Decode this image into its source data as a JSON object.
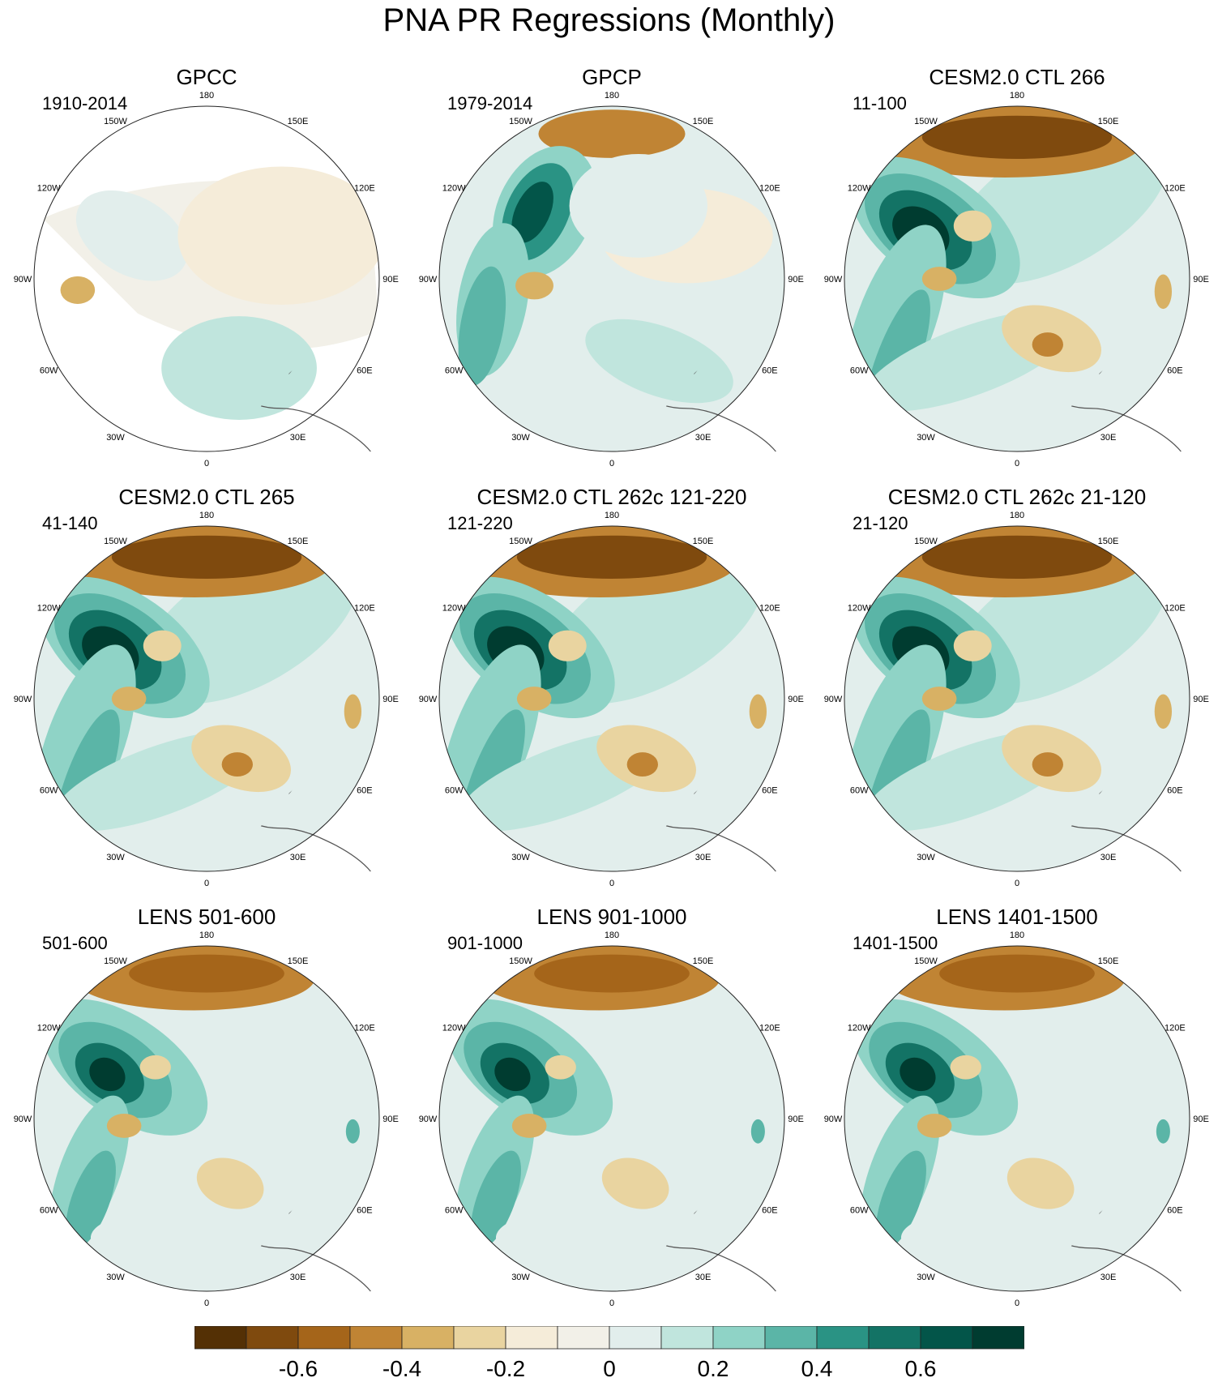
{
  "chart_data": {
    "type": "heatmap",
    "title": "PNA PR Regressions (Monthly)",
    "projection": "north polar stereographic",
    "longitude_labels": [
      "180",
      "150E",
      "120E",
      "90E",
      "60E",
      "30E",
      "0",
      "30W",
      "60W",
      "90W",
      "120W",
      "150W"
    ],
    "colorbar": {
      "levels": [
        -0.7,
        -0.6,
        -0.5,
        -0.4,
        -0.3,
        -0.2,
        -0.1,
        0,
        0.1,
        0.2,
        0.3,
        0.4,
        0.5,
        0.6,
        0.7
      ],
      "tick_labels": [
        "-0.6",
        "-0.4",
        "-0.2",
        "0",
        "0.2",
        "0.4",
        "0.6"
      ],
      "colors": [
        "#543005",
        "#7f4a0e",
        "#a5651a",
        "#c08434",
        "#d8b164",
        "#e9d4a0",
        "#f5ecd9",
        "#f2f0e8",
        "#e2eeec",
        "#c0e5dd",
        "#8fd3c6",
        "#5bb5a7",
        "#2a9384",
        "#137365",
        "#035549",
        "#003c30"
      ]
    },
    "panels": [
      {
        "title": "GPCC",
        "period": "1910-2014",
        "type": "obs_gpcc"
      },
      {
        "title": "GPCP",
        "period": "1979-2014",
        "type": "obs_gpcp"
      },
      {
        "title": "CESM2.0 CTL 266",
        "period": "11-100",
        "type": "model_strong"
      },
      {
        "title": "CESM2.0 CTL 265",
        "period": "41-140",
        "type": "model_strong"
      },
      {
        "title": "CESM2.0 CTL 262c 121-220",
        "period": "121-220",
        "type": "model_strong"
      },
      {
        "title": "CESM2.0 CTL 262c 21-120",
        "period": "21-120",
        "type": "model_strong"
      },
      {
        "title": "LENS 501-600",
        "period": "501-600",
        "type": "lens"
      },
      {
        "title": "LENS 901-1000",
        "period": "901-1000",
        "type": "lens"
      },
      {
        "title": "LENS 1401-1500",
        "period": "1401-1500",
        "type": "lens"
      }
    ]
  }
}
